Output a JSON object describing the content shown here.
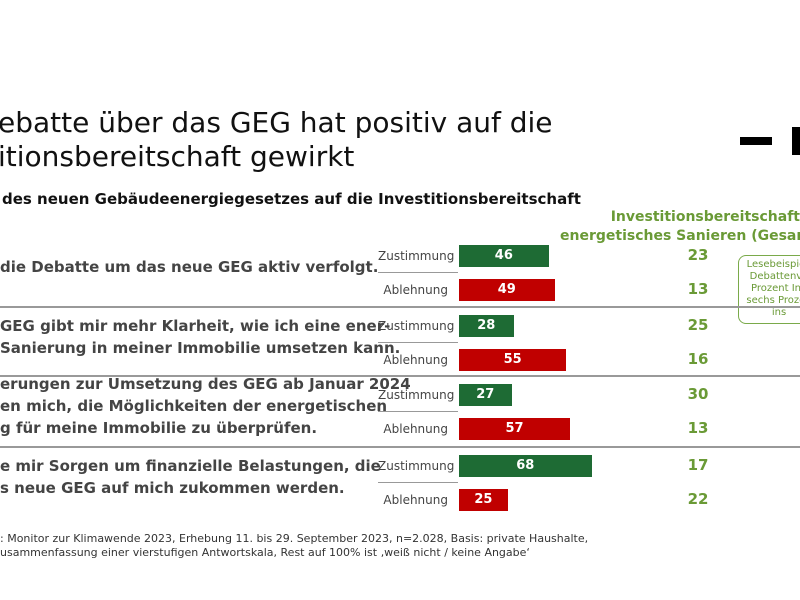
{
  "title_lines": [
    "ebatte über das GEG hat positiv auf die",
    "itionsbereitschaft gewirkt"
  ],
  "subtitle": "des neuen Gebäudeenergiegesetzes auf die Investitionsbereitschaft",
  "colhead": [
    "Investitionsbereitschaft",
    "energetisches Sanieren (Gesan"
  ],
  "callout": [
    "Lesebeispiel:",
    "Debattenve",
    "Prozent Inv",
    "sechs Prozen",
    "ins"
  ],
  "colors": {
    "zustimmung": "#1e6b34",
    "ablehnung": "#c00000",
    "accent": "#6a9a36"
  },
  "chart_data": {
    "type": "bar",
    "orientation": "horizontal",
    "series_labels": [
      "Zustimmung",
      "Ablehnung"
    ],
    "groups": [
      {
        "statement": [
          "die Debatte um das neue GEG aktiv verfolgt."
        ],
        "zustimmung": 46,
        "ablehnung": 49,
        "invest_zustimmung": 23,
        "invest_ablehnung": 13
      },
      {
        "statement": [
          "GEG gibt mir mehr Klarheit, wie ich eine ener-",
          "Sanierung in meiner Immobilie umsetzen kann."
        ],
        "zustimmung": 28,
        "ablehnung": 55,
        "invest_zustimmung": 25,
        "invest_ablehnung": 16
      },
      {
        "statement": [
          "erungen zur Umsetzung des GEG ab Januar 2024",
          "en mich, die Möglichkeiten der energetischen",
          "g für meine Immobilie zu überprüfen."
        ],
        "zustimmung": 27,
        "ablehnung": 57,
        "invest_zustimmung": 30,
        "invest_ablehnung": 13
      },
      {
        "statement": [
          "e mir Sorgen um finanzielle Belastungen, die",
          "s neue GEG auf mich zukommen werden."
        ],
        "zustimmung": 68,
        "ablehnung": 25,
        "invest_zustimmung": 17,
        "invest_ablehnung": 22
      }
    ]
  },
  "footnote": [
    ": Monitor zur Klimawende 2023, Erhebung 11. bis 29. September 2023, n=2.028, Basis: private Haushalte,",
    "usammenfassung einer vierstufigen Antwortskala, Rest auf 100% ist ‚weiß nicht / keine Angabe‘"
  ]
}
